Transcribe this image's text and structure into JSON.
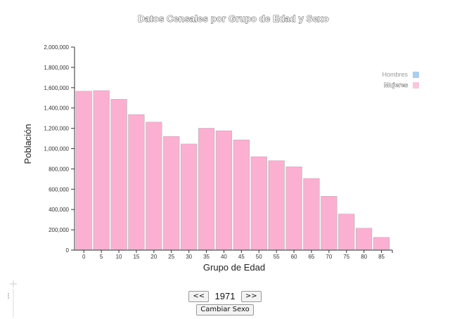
{
  "chart_data": {
    "type": "bar",
    "title": "Datos Censales por Grupo de Edad y Sexo",
    "xlabel": "Grupo de Edad",
    "ylabel": "Población",
    "categories": [
      "0",
      "5",
      "10",
      "15",
      "20",
      "25",
      "30",
      "35",
      "40",
      "45",
      "50",
      "55",
      "60",
      "65",
      "70",
      "75",
      "80",
      "85"
    ],
    "series": [
      {
        "name": "Mujeres",
        "color": "#fbb0d2",
        "values": [
          1565000,
          1570000,
          1485000,
          1335000,
          1260000,
          1120000,
          1045000,
          1200000,
          1175000,
          1085000,
          920000,
          880000,
          820000,
          705000,
          530000,
          355000,
          215000,
          125000
        ]
      }
    ],
    "ylim": [
      0,
      2000000
    ],
    "yticks": [
      0,
      200000,
      400000,
      600000,
      800000,
      1000000,
      1200000,
      1400000,
      1600000,
      1800000,
      2000000
    ],
    "ytick_labels": [
      "0",
      "200,000",
      "400,000",
      "600,000",
      "800,000",
      "1,000,000",
      "1,200,000",
      "1,400,000",
      "1,600,000",
      "1,800,000",
      "2,000,000"
    ],
    "legend": {
      "placement": "top-right",
      "entries": [
        {
          "label": "Hombres",
          "color": "#aacfee",
          "active": false
        },
        {
          "label": "Mujeres",
          "color": "#f9c6dc",
          "active": true
        }
      ]
    },
    "grid": false
  },
  "controls": {
    "prev_label": "<<",
    "year": "1971",
    "next_label": ">>",
    "toggle_label": "Cambiar Sexo"
  }
}
